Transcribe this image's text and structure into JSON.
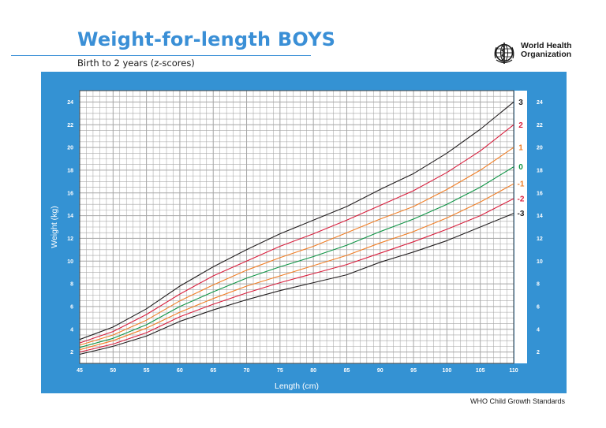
{
  "header": {
    "title": "Weight-for-length BOYS",
    "subtitle": "Birth to 2 years (z-scores)"
  },
  "logo": {
    "icon": "who-emblem-icon",
    "line1": "World Health",
    "line2": "Organization"
  },
  "footer": "WHO Child Growth Standards",
  "colors": {
    "panel": "#3492d3",
    "grid": "#a6a6a6",
    "z3": "#231f20",
    "z2": "#d81e3c",
    "z1": "#f07e26",
    "z0": "#0f9445"
  },
  "chart_data": {
    "type": "line",
    "xlabel": "Length (cm)",
    "ylabel": "Weight (kg)",
    "xlim": [
      45,
      110
    ],
    "ylim": [
      1,
      25
    ],
    "x_ticks": [
      45,
      50,
      55,
      60,
      65,
      70,
      75,
      80,
      85,
      90,
      95,
      100,
      105,
      110
    ],
    "y_ticks": [
      2,
      4,
      6,
      8,
      10,
      12,
      14,
      16,
      18,
      20,
      22,
      24
    ],
    "grid": true,
    "x": [
      45,
      50,
      55,
      60,
      65,
      70,
      75,
      80,
      85,
      90,
      95,
      100,
      105,
      110
    ],
    "series": [
      {
        "name": "3",
        "color": "#231f20",
        "values": [
          3.1,
          4.2,
          5.8,
          7.8,
          9.5,
          11.0,
          12.4,
          13.6,
          14.8,
          16.3,
          17.7,
          19.5,
          21.6,
          24.0
        ]
      },
      {
        "name": "2",
        "color": "#d81e3c",
        "values": [
          2.8,
          3.8,
          5.3,
          7.1,
          8.7,
          10.0,
          11.3,
          12.4,
          13.6,
          14.9,
          16.2,
          17.8,
          19.7,
          22.0
        ]
      },
      {
        "name": "1",
        "color": "#f07e26",
        "values": [
          2.6,
          3.5,
          4.8,
          6.5,
          7.9,
          9.2,
          10.3,
          11.3,
          12.5,
          13.7,
          14.8,
          16.3,
          18.0,
          20.0
        ]
      },
      {
        "name": "0",
        "color": "#0f9445",
        "values": [
          2.4,
          3.2,
          4.4,
          6.0,
          7.3,
          8.5,
          9.5,
          10.4,
          11.4,
          12.6,
          13.7,
          15.0,
          16.5,
          18.3
        ]
      },
      {
        "name": "-1",
        "color": "#f07e26",
        "values": [
          2.2,
          3.0,
          4.1,
          5.5,
          6.7,
          7.8,
          8.7,
          9.6,
          10.5,
          11.6,
          12.6,
          13.8,
          15.2,
          16.8
        ]
      },
      {
        "name": "-2",
        "color": "#d81e3c",
        "values": [
          2.0,
          2.7,
          3.7,
          5.1,
          6.2,
          7.2,
          8.1,
          8.9,
          9.7,
          10.7,
          11.7,
          12.8,
          14.0,
          15.5
        ]
      },
      {
        "name": "-3",
        "color": "#231f20",
        "values": [
          1.8,
          2.5,
          3.4,
          4.7,
          5.7,
          6.6,
          7.4,
          8.1,
          8.8,
          9.9,
          10.8,
          11.8,
          13.0,
          14.2
        ]
      }
    ]
  }
}
